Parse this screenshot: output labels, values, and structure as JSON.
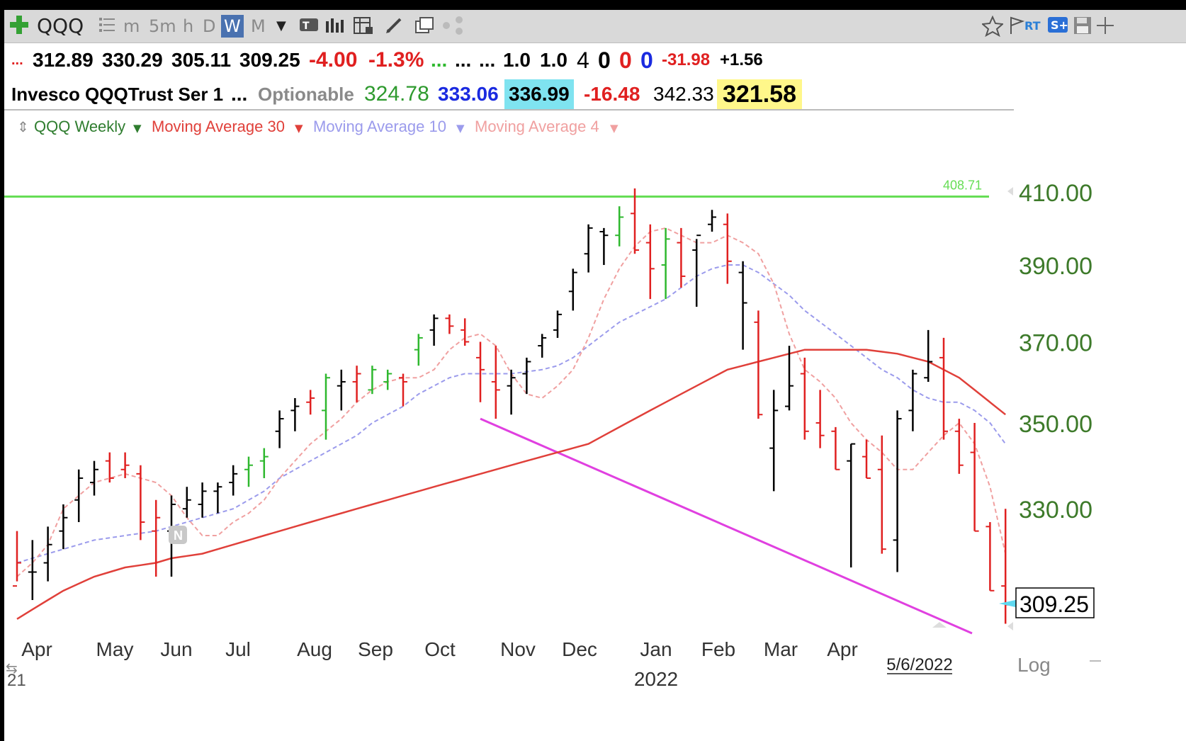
{
  "toolbar": {
    "add_icon": "plus-icon",
    "symbol": "QQQ",
    "list_icon": "list-icon",
    "intervals": [
      "m",
      "5m",
      "h",
      "D",
      "W",
      "M"
    ],
    "selected_interval": "W",
    "right_text": "RT"
  },
  "quote": {
    "dots1": "...",
    "open": "312.89",
    "high": "330.29",
    "low": "305.11",
    "close": "309.25",
    "change": "-4.00",
    "change_pct": "-1.3%",
    "dots2": "...",
    "dots3": "...",
    "dots4": "...",
    "v1": "1.0",
    "v2": "1.0",
    "n1": "4",
    "n2": "0",
    "n3": "0",
    "n4": "0",
    "v3": "-31.98",
    "v4": "+1.56",
    "name": "Invesco QQQTrust Ser 1",
    "dots5": "...",
    "optionable": "Optionable",
    "p1": "324.78",
    "p2": "333.06",
    "p3": "336.99",
    "p4": "-16.48",
    "p5": "342.33",
    "p6": "321.58"
  },
  "legend": {
    "series_label": "QQQ Weekly",
    "ma30": "Moving Average 30",
    "ma10": "Moving Average 10",
    "ma4": "Moving Average 4"
  },
  "colors": {
    "up": "#2eb82e",
    "neutral": "#000000",
    "down": "#e02020",
    "ma30": "#e0403a",
    "ma10": "#9b9bec",
    "ma4": "#f0a0a0",
    "resistance": "#66dd55",
    "support": "#e040e0",
    "axis_text": "#3d7a2a"
  },
  "chart_data": {
    "type": "ohlc",
    "title": "QQQ Weekly",
    "y_scale": "log",
    "ylim": [
      305,
      412
    ],
    "y_ticks": [
      "410.00",
      "390.00",
      "370.00",
      "350.00",
      "330.00"
    ],
    "last_price_label": "309.25",
    "scale_label": "Log",
    "resistance_label": "408.71",
    "resistance_level": 408.71,
    "date_marker": "5/6/2022",
    "x_labels": [
      "Apr",
      "May",
      "Jun",
      "Jul",
      "Aug",
      "Sep",
      "Oct",
      "Nov",
      "Dec",
      "Jan",
      "Feb",
      "Mar",
      "Apr"
    ],
    "x_label_year": "2022",
    "year_fragment": "21",
    "earnings_marker": "N",
    "bars": [
      {
        "o": 313,
        "h": 325,
        "l": 314,
        "c": 318,
        "d": "down"
      },
      {
        "o": 316,
        "h": 323,
        "l": 310,
        "c": 316,
        "d": "neutral"
      },
      {
        "o": 318,
        "h": 326,
        "l": 314,
        "c": 322,
        "d": "neutral"
      },
      {
        "o": 325,
        "h": 331,
        "l": 321,
        "c": 328,
        "d": "neutral"
      },
      {
        "o": 332,
        "h": 339,
        "l": 327,
        "c": 337,
        "d": "neutral"
      },
      {
        "o": 336,
        "h": 341,
        "l": 333,
        "c": 339,
        "d": "neutral"
      },
      {
        "o": 341,
        "h": 343,
        "l": 336,
        "c": 337,
        "d": "down"
      },
      {
        "o": 339,
        "h": 343,
        "l": 337,
        "c": 340,
        "d": "down"
      },
      {
        "o": 338,
        "h": 340,
        "l": 323,
        "c": 327,
        "d": "down"
      },
      {
        "o": 325,
        "h": 332,
        "l": 315,
        "c": 328,
        "d": "down"
      },
      {
        "o": 325,
        "h": 333,
        "l": 315,
        "c": 331,
        "d": "neutral"
      },
      {
        "o": 330,
        "h": 335,
        "l": 328,
        "c": 332,
        "d": "neutral"
      },
      {
        "o": 331,
        "h": 336,
        "l": 328,
        "c": 334,
        "d": "neutral"
      },
      {
        "o": 334,
        "h": 336,
        "l": 329,
        "c": 335,
        "d": "neutral"
      },
      {
        "o": 336,
        "h": 340,
        "l": 333,
        "c": 338,
        "d": "neutral"
      },
      {
        "o": 339,
        "h": 342,
        "l": 335,
        "c": 340,
        "d": "up"
      },
      {
        "o": 341,
        "h": 344,
        "l": 337,
        "c": 342,
        "d": "up"
      },
      {
        "o": 348,
        "h": 353,
        "l": 344,
        "c": 351,
        "d": "neutral"
      },
      {
        "o": 353,
        "h": 356,
        "l": 348,
        "c": 354,
        "d": "neutral"
      },
      {
        "o": 355,
        "h": 358,
        "l": 352,
        "c": 356,
        "d": "down"
      },
      {
        "o": 353,
        "h": 362,
        "l": 346,
        "c": 361,
        "d": "up"
      },
      {
        "o": 359,
        "h": 363,
        "l": 353,
        "c": 360,
        "d": "neutral"
      },
      {
        "o": 360,
        "h": 364,
        "l": 355,
        "c": 362,
        "d": "down"
      },
      {
        "o": 358,
        "h": 364,
        "l": 357,
        "c": 363,
        "d": "up"
      },
      {
        "o": 360,
        "h": 363,
        "l": 358,
        "c": 362,
        "d": "up"
      },
      {
        "o": 361,
        "h": 362,
        "l": 354,
        "c": 360,
        "d": "down"
      },
      {
        "o": 368,
        "h": 372,
        "l": 364,
        "c": 371,
        "d": "up"
      },
      {
        "o": 373,
        "h": 377,
        "l": 369,
        "c": 376,
        "d": "neutral"
      },
      {
        "o": 376,
        "h": 377,
        "l": 372,
        "c": 374,
        "d": "down"
      },
      {
        "o": 373,
        "h": 376,
        "l": 369,
        "c": 370,
        "d": "down"
      },
      {
        "o": 366,
        "h": 370,
        "l": 355,
        "c": 363,
        "d": "down"
      },
      {
        "o": 360,
        "h": 369,
        "l": 351,
        "c": 358,
        "d": "down"
      },
      {
        "o": 359,
        "h": 363,
        "l": 352,
        "c": 361,
        "d": "neutral"
      },
      {
        "o": 362,
        "h": 366,
        "l": 357,
        "c": 365,
        "d": "neutral"
      },
      {
        "o": 369,
        "h": 372,
        "l": 366,
        "c": 371,
        "d": "neutral"
      },
      {
        "o": 373,
        "h": 378,
        "l": 371,
        "c": 377,
        "d": "neutral"
      },
      {
        "o": 383,
        "h": 389,
        "l": 378,
        "c": 388,
        "d": "neutral"
      },
      {
        "o": 393,
        "h": 401,
        "l": 388,
        "c": 400,
        "d": "neutral"
      },
      {
        "o": 399,
        "h": 400,
        "l": 390,
        "c": 398,
        "d": "neutral"
      },
      {
        "o": 398,
        "h": 406,
        "l": 395,
        "c": 403,
        "d": "up"
      },
      {
        "o": 404,
        "h": 411,
        "l": 393,
        "c": 394,
        "d": "down"
      },
      {
        "o": 396,
        "h": 401,
        "l": 381,
        "c": 389,
        "d": "down"
      },
      {
        "o": 390,
        "h": 400,
        "l": 381,
        "c": 397,
        "d": "up"
      },
      {
        "o": 396,
        "h": 400,
        "l": 384,
        "c": 387,
        "d": "down"
      },
      {
        "o": 394,
        "h": 397,
        "l": 379,
        "c": 398,
        "d": "neutral"
      },
      {
        "o": 401,
        "h": 405,
        "l": 399,
        "c": 403,
        "d": "neutral"
      },
      {
        "o": 401,
        "h": 404,
        "l": 385,
        "c": 391,
        "d": "down"
      },
      {
        "o": 388,
        "h": 391,
        "l": 368,
        "c": 380,
        "d": "neutral"
      },
      {
        "o": 375,
        "h": 378,
        "l": 351,
        "c": 352,
        "d": "down"
      },
      {
        "o": 344,
        "h": 358,
        "l": 334,
        "c": 353,
        "d": "neutral"
      },
      {
        "o": 354,
        "h": 369,
        "l": 353,
        "c": 359,
        "d": "neutral"
      },
      {
        "o": 362,
        "h": 366,
        "l": 346,
        "c": 348,
        "d": "down"
      },
      {
        "o": 350,
        "h": 358,
        "l": 344,
        "c": 347,
        "d": "down"
      },
      {
        "o": 348,
        "h": 349,
        "l": 339,
        "c": 339,
        "d": "down"
      },
      {
        "o": 341,
        "h": 345,
        "l": 317,
        "c": 345,
        "d": "neutral"
      },
      {
        "o": 342,
        "h": 346,
        "l": 337,
        "c": 337,
        "d": "down"
      },
      {
        "o": 339,
        "h": 347,
        "l": 320,
        "c": 321,
        "d": "down"
      },
      {
        "o": 323,
        "h": 353,
        "l": 316,
        "c": 351,
        "d": "neutral"
      },
      {
        "o": 353,
        "h": 363,
        "l": 348,
        "c": 362,
        "d": "neutral"
      },
      {
        "o": 361,
        "h": 373,
        "l": 360,
        "c": 365,
        "d": "neutral"
      },
      {
        "o": 366,
        "h": 371,
        "l": 346,
        "c": 348,
        "d": "down"
      },
      {
        "o": 348,
        "h": 351,
        "l": 338,
        "c": 340,
        "d": "down"
      },
      {
        "o": 343,
        "h": 350,
        "l": 325,
        "c": 325,
        "d": "down"
      },
      {
        "o": 326,
        "h": 327,
        "l": 312,
        "c": 312,
        "d": "down"
      },
      {
        "o": 313,
        "h": 330,
        "l": 305,
        "c": 309,
        "d": "down"
      }
    ],
    "ma30": [
      306,
      308,
      310,
      312,
      313.5,
      315,
      316,
      317,
      317.5,
      318,
      319,
      319.5,
      320,
      321,
      322,
      323,
      324,
      325,
      326,
      327,
      328,
      329,
      330,
      331,
      332,
      333,
      334,
      335,
      336,
      337,
      338,
      339,
      340,
      341,
      342,
      343,
      344,
      345,
      347,
      349,
      351,
      353,
      355,
      357,
      359,
      361,
      363,
      364,
      365,
      366,
      367,
      368,
      368,
      368,
      368,
      368,
      367.5,
      367,
      366,
      365,
      363,
      361,
      358,
      355,
      352
    ],
    "ma10": [
      318,
      319,
      320,
      321,
      322,
      323,
      323.5,
      324,
      324.5,
      325,
      326,
      327,
      328,
      329,
      330,
      332,
      334,
      337,
      339,
      341,
      343,
      345,
      347,
      350,
      352,
      354,
      357,
      359,
      361,
      362,
      362,
      362,
      362,
      362.5,
      363,
      364,
      366,
      369,
      372,
      375,
      377,
      379,
      381,
      384,
      387,
      389,
      390,
      390,
      388,
      385,
      382,
      378,
      375,
      372,
      369,
      366,
      363,
      361,
      358,
      356,
      355,
      355,
      353,
      350,
      345
    ],
    "ma4": [
      315,
      318,
      322,
      330,
      333,
      336,
      337,
      338,
      337,
      336,
      333,
      328,
      324,
      324,
      327,
      329,
      332,
      337,
      341,
      345,
      348,
      351,
      355,
      358,
      360,
      361,
      361,
      363,
      368,
      371,
      372,
      369,
      362,
      357,
      356,
      359,
      363,
      371,
      381,
      389,
      395,
      399,
      400,
      398,
      396,
      396,
      398,
      396,
      393,
      385,
      372,
      363,
      360,
      356,
      350,
      346,
      343,
      339,
      339,
      343,
      347,
      350,
      345,
      335,
      320
    ],
    "trendline_support": [
      {
        "bar": 30,
        "price": 351
      },
      {
        "bar": 64,
        "price": 300
      }
    ],
    "trendline_resistance": {
      "price": 408.71
    }
  }
}
